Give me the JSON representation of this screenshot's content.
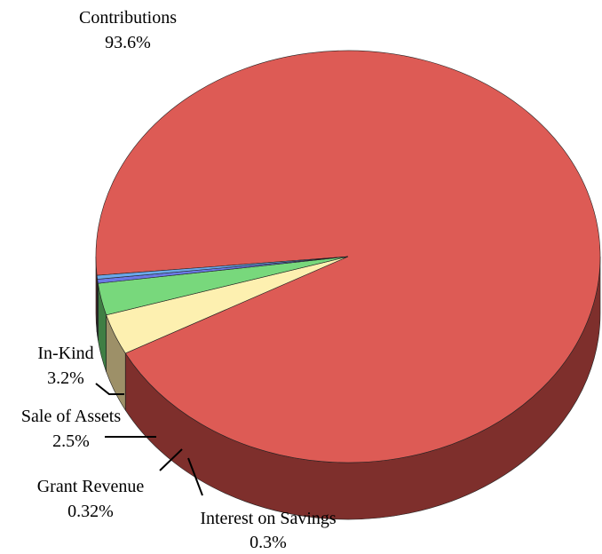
{
  "chart_data": {
    "type": "pie",
    "style": "3d",
    "slices": [
      {
        "name": "Contributions",
        "value": 93.6,
        "label": "93.6%",
        "color": "#dd5b55",
        "side_color": "#7e2f2c"
      },
      {
        "name": "In-Kind",
        "value": 3.2,
        "label": "3.2%",
        "color": "#fdf0b0",
        "side_color": "#9d9068"
      },
      {
        "name": "Sale of Assets",
        "value": 2.5,
        "label": "2.5%",
        "color": "#78d87c",
        "side_color": "#3f7e44"
      },
      {
        "name": "Grant Revenue",
        "value": 0.32,
        "label": "0.32%",
        "color": "#6b78e6",
        "side_color": "#3b449a"
      },
      {
        "name": "Interest on Savings",
        "value": 0.3,
        "label": "0.3%",
        "color": "#6aa8ea",
        "side_color": "#3a6494"
      }
    ]
  }
}
